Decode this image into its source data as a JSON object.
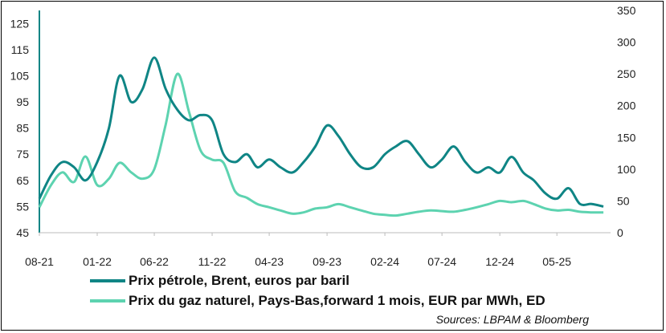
{
  "chart_data": {
    "type": "line",
    "title": "",
    "source": "Sources: LBPAM & Bloomberg",
    "x_tick_labels": [
      "08-21",
      "01-22",
      "06-22",
      "11-22",
      "04-23",
      "09-23",
      "02-24",
      "07-24",
      "12-24",
      "05-25"
    ],
    "y_left": {
      "ticks": [
        45,
        55,
        65,
        75,
        85,
        95,
        105,
        115,
        125
      ],
      "range": [
        45,
        130
      ]
    },
    "y_right": {
      "ticks": [
        0,
        50,
        100,
        150,
        200,
        250,
        300,
        350
      ],
      "range": [
        0,
        350
      ]
    },
    "grid": false,
    "legend_position": "bottom",
    "series": [
      {
        "name": "Prix pétrole, Brent, euros par baril",
        "axis": "left",
        "color": "#0f8585",
        "x": [
          "2021-08",
          "2021-09",
          "2021-10",
          "2021-11",
          "2021-12",
          "2022-01",
          "2022-02",
          "2022-03",
          "2022-04",
          "2022-05",
          "2022-06",
          "2022-07",
          "2022-08",
          "2022-09",
          "2022-10",
          "2022-11",
          "2022-12",
          "2023-01",
          "2023-02",
          "2023-03",
          "2023-04",
          "2023-05",
          "2023-06",
          "2023-07",
          "2023-08",
          "2023-09",
          "2023-10",
          "2023-11",
          "2023-12",
          "2024-01",
          "2024-02",
          "2024-03",
          "2024-04",
          "2024-05",
          "2024-06",
          "2024-07",
          "2024-08",
          "2024-09",
          "2024-10",
          "2024-11",
          "2024-12",
          "2025-01",
          "2025-02",
          "2025-03",
          "2025-04",
          "2025-05",
          "2025-06",
          "2025-07",
          "2025-08",
          "2025-09"
        ],
        "values": [
          58,
          67,
          72,
          70,
          65,
          72,
          85,
          105,
          95,
          100,
          112,
          100,
          92,
          88,
          90,
          88,
          75,
          72,
          75,
          70,
          73,
          70,
          68,
          72,
          78,
          86,
          82,
          75,
          70,
          70,
          75,
          78,
          80,
          75,
          70,
          73,
          78,
          72,
          68,
          70,
          68,
          74,
          68,
          65,
          60,
          58,
          62,
          56,
          56,
          55
        ]
      },
      {
        "name": "Prix du gaz naturel, Pays-Bas,forward 1 mois, EUR par MWh, ED",
        "axis": "right",
        "color": "#5dd3b0",
        "x": [
          "2021-08",
          "2021-09",
          "2021-10",
          "2021-11",
          "2021-12",
          "2022-01",
          "2022-02",
          "2022-03",
          "2022-04",
          "2022-05",
          "2022-06",
          "2022-07",
          "2022-08",
          "2022-09",
          "2022-10",
          "2022-11",
          "2022-12",
          "2023-01",
          "2023-02",
          "2023-03",
          "2023-04",
          "2023-05",
          "2023-06",
          "2023-07",
          "2023-08",
          "2023-09",
          "2023-10",
          "2023-11",
          "2023-12",
          "2024-01",
          "2024-02",
          "2024-03",
          "2024-04",
          "2024-05",
          "2024-06",
          "2024-07",
          "2024-08",
          "2024-09",
          "2024-10",
          "2024-11",
          "2024-12",
          "2025-01",
          "2025-02",
          "2025-03",
          "2025-04",
          "2025-05",
          "2025-06",
          "2025-07",
          "2025-08",
          "2025-09"
        ],
        "values": [
          40,
          75,
          95,
          80,
          120,
          75,
          85,
          110,
          95,
          85,
          100,
          170,
          250,
          190,
          130,
          115,
          110,
          65,
          55,
          45,
          40,
          35,
          30,
          32,
          38,
          40,
          45,
          40,
          35,
          30,
          28,
          27,
          30,
          33,
          35,
          34,
          33,
          36,
          40,
          45,
          50,
          48,
          50,
          45,
          38,
          35,
          36,
          33,
          32,
          32
        ]
      }
    ]
  }
}
